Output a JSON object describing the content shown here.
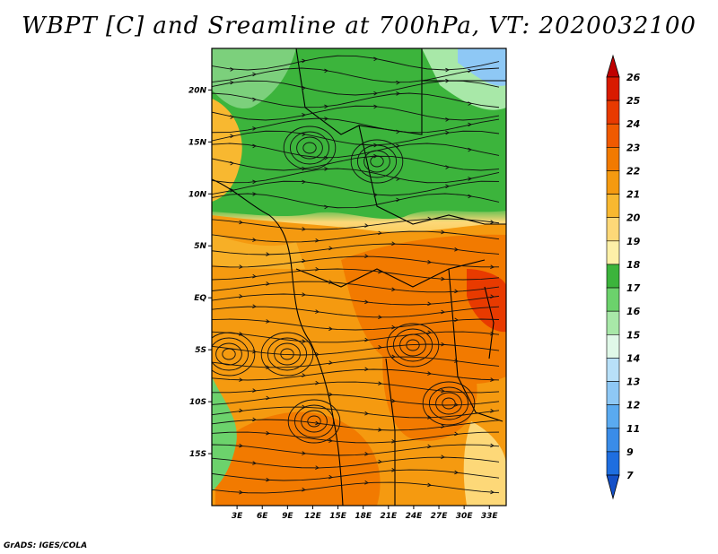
{
  "title": "WBPT [C] and Sreamline at 700hPa, VT: 2020032100",
  "credit": "GrADS: IGES/COLA",
  "map": {
    "lat_labels": [
      "20N",
      "15N",
      "10N",
      "5N",
      "EQ",
      "5S",
      "10S",
      "15S"
    ],
    "lat_values": [
      20,
      15,
      10,
      5,
      0,
      -5,
      -10,
      -15
    ],
    "lon_labels": [
      "3E",
      "6E",
      "9E",
      "12E",
      "15E",
      "18E",
      "21E",
      "24E",
      "27E",
      "30E",
      "33E"
    ],
    "lon_values": [
      3,
      6,
      9,
      12,
      15,
      18,
      21,
      24,
      27,
      30,
      33
    ],
    "lon_range": [
      0,
      35
    ],
    "lat_range": [
      -20,
      24
    ]
  },
  "colorbar": {
    "labels": [
      "26",
      "25",
      "24",
      "23",
      "22",
      "21",
      "20",
      "19",
      "18",
      "17",
      "16",
      "15",
      "14",
      "13",
      "12",
      "11",
      "9",
      "7"
    ],
    "colors": [
      "#c00000",
      "#d81a00",
      "#e83a00",
      "#f05a00",
      "#f27a00",
      "#f59a10",
      "#f8b830",
      "#fdd878",
      "#fdf0a8",
      "#3cb43c",
      "#6cd26c",
      "#a8e8a8",
      "#e0f8e8",
      "#b8e0f8",
      "#8ec8f5",
      "#5aaaf0",
      "#3a8ce8",
      "#1e6ee0",
      "#1450c8"
    ]
  }
}
